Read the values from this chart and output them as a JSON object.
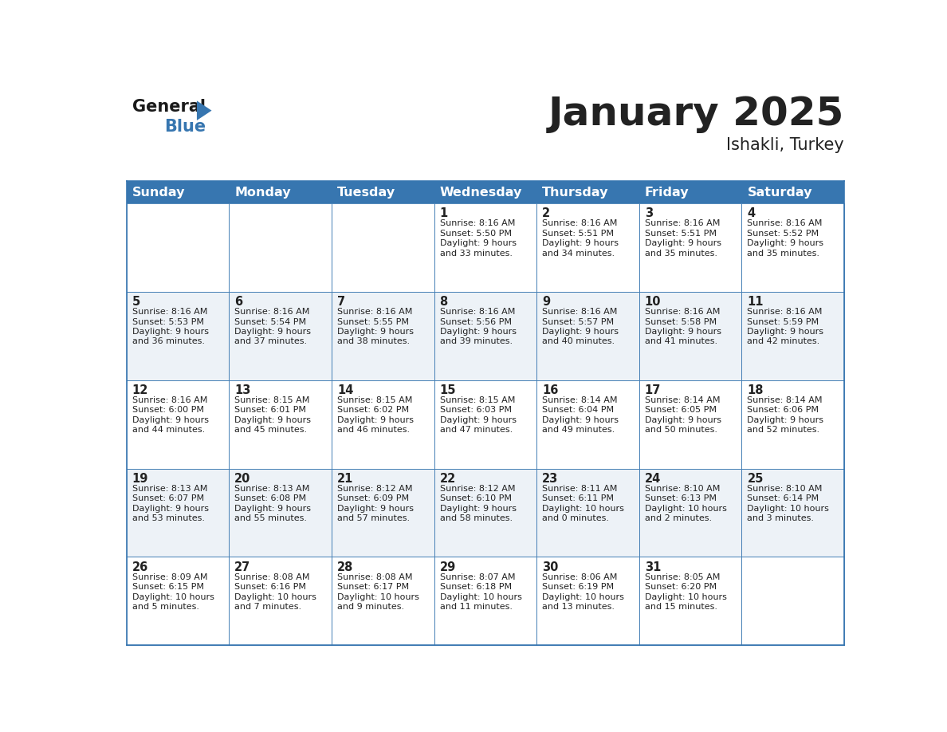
{
  "title": "January 2025",
  "subtitle": "Ishakli, Turkey",
  "header_color": "#3776b0",
  "header_text_color": "#ffffff",
  "cell_bg_white": "#ffffff",
  "cell_bg_gray": "#edf2f7",
  "border_color": "#3776b0",
  "day_names": [
    "Sunday",
    "Monday",
    "Tuesday",
    "Wednesday",
    "Thursday",
    "Friday",
    "Saturday"
  ],
  "days": [
    {
      "day": 1,
      "col": 3,
      "row": 0,
      "sunrise": "8:16 AM",
      "sunset": "5:50 PM",
      "daylight_h": "9 hours",
      "daylight_m": "33 minutes."
    },
    {
      "day": 2,
      "col": 4,
      "row": 0,
      "sunrise": "8:16 AM",
      "sunset": "5:51 PM",
      "daylight_h": "9 hours",
      "daylight_m": "34 minutes."
    },
    {
      "day": 3,
      "col": 5,
      "row": 0,
      "sunrise": "8:16 AM",
      "sunset": "5:51 PM",
      "daylight_h": "9 hours",
      "daylight_m": "35 minutes."
    },
    {
      "day": 4,
      "col": 6,
      "row": 0,
      "sunrise": "8:16 AM",
      "sunset": "5:52 PM",
      "daylight_h": "9 hours",
      "daylight_m": "35 minutes."
    },
    {
      "day": 5,
      "col": 0,
      "row": 1,
      "sunrise": "8:16 AM",
      "sunset": "5:53 PM",
      "daylight_h": "9 hours",
      "daylight_m": "36 minutes."
    },
    {
      "day": 6,
      "col": 1,
      "row": 1,
      "sunrise": "8:16 AM",
      "sunset": "5:54 PM",
      "daylight_h": "9 hours",
      "daylight_m": "37 minutes."
    },
    {
      "day": 7,
      "col": 2,
      "row": 1,
      "sunrise": "8:16 AM",
      "sunset": "5:55 PM",
      "daylight_h": "9 hours",
      "daylight_m": "38 minutes."
    },
    {
      "day": 8,
      "col": 3,
      "row": 1,
      "sunrise": "8:16 AM",
      "sunset": "5:56 PM",
      "daylight_h": "9 hours",
      "daylight_m": "39 minutes."
    },
    {
      "day": 9,
      "col": 4,
      "row": 1,
      "sunrise": "8:16 AM",
      "sunset": "5:57 PM",
      "daylight_h": "9 hours",
      "daylight_m": "40 minutes."
    },
    {
      "day": 10,
      "col": 5,
      "row": 1,
      "sunrise": "8:16 AM",
      "sunset": "5:58 PM",
      "daylight_h": "9 hours",
      "daylight_m": "41 minutes."
    },
    {
      "day": 11,
      "col": 6,
      "row": 1,
      "sunrise": "8:16 AM",
      "sunset": "5:59 PM",
      "daylight_h": "9 hours",
      "daylight_m": "42 minutes."
    },
    {
      "day": 12,
      "col": 0,
      "row": 2,
      "sunrise": "8:16 AM",
      "sunset": "6:00 PM",
      "daylight_h": "9 hours",
      "daylight_m": "44 minutes."
    },
    {
      "day": 13,
      "col": 1,
      "row": 2,
      "sunrise": "8:15 AM",
      "sunset": "6:01 PM",
      "daylight_h": "9 hours",
      "daylight_m": "45 minutes."
    },
    {
      "day": 14,
      "col": 2,
      "row": 2,
      "sunrise": "8:15 AM",
      "sunset": "6:02 PM",
      "daylight_h": "9 hours",
      "daylight_m": "46 minutes."
    },
    {
      "day": 15,
      "col": 3,
      "row": 2,
      "sunrise": "8:15 AM",
      "sunset": "6:03 PM",
      "daylight_h": "9 hours",
      "daylight_m": "47 minutes."
    },
    {
      "day": 16,
      "col": 4,
      "row": 2,
      "sunrise": "8:14 AM",
      "sunset": "6:04 PM",
      "daylight_h": "9 hours",
      "daylight_m": "49 minutes."
    },
    {
      "day": 17,
      "col": 5,
      "row": 2,
      "sunrise": "8:14 AM",
      "sunset": "6:05 PM",
      "daylight_h": "9 hours",
      "daylight_m": "50 minutes."
    },
    {
      "day": 18,
      "col": 6,
      "row": 2,
      "sunrise": "8:14 AM",
      "sunset": "6:06 PM",
      "daylight_h": "9 hours",
      "daylight_m": "52 minutes."
    },
    {
      "day": 19,
      "col": 0,
      "row": 3,
      "sunrise": "8:13 AM",
      "sunset": "6:07 PM",
      "daylight_h": "9 hours",
      "daylight_m": "53 minutes."
    },
    {
      "day": 20,
      "col": 1,
      "row": 3,
      "sunrise": "8:13 AM",
      "sunset": "6:08 PM",
      "daylight_h": "9 hours",
      "daylight_m": "55 minutes."
    },
    {
      "day": 21,
      "col": 2,
      "row": 3,
      "sunrise": "8:12 AM",
      "sunset": "6:09 PM",
      "daylight_h": "9 hours",
      "daylight_m": "57 minutes."
    },
    {
      "day": 22,
      "col": 3,
      "row": 3,
      "sunrise": "8:12 AM",
      "sunset": "6:10 PM",
      "daylight_h": "9 hours",
      "daylight_m": "58 minutes."
    },
    {
      "day": 23,
      "col": 4,
      "row": 3,
      "sunrise": "8:11 AM",
      "sunset": "6:11 PM",
      "daylight_h": "10 hours",
      "daylight_m": "0 minutes."
    },
    {
      "day": 24,
      "col": 5,
      "row": 3,
      "sunrise": "8:10 AM",
      "sunset": "6:13 PM",
      "daylight_h": "10 hours",
      "daylight_m": "2 minutes."
    },
    {
      "day": 25,
      "col": 6,
      "row": 3,
      "sunrise": "8:10 AM",
      "sunset": "6:14 PM",
      "daylight_h": "10 hours",
      "daylight_m": "3 minutes."
    },
    {
      "day": 26,
      "col": 0,
      "row": 4,
      "sunrise": "8:09 AM",
      "sunset": "6:15 PM",
      "daylight_h": "10 hours",
      "daylight_m": "5 minutes."
    },
    {
      "day": 27,
      "col": 1,
      "row": 4,
      "sunrise": "8:08 AM",
      "sunset": "6:16 PM",
      "daylight_h": "10 hours",
      "daylight_m": "7 minutes."
    },
    {
      "day": 28,
      "col": 2,
      "row": 4,
      "sunrise": "8:08 AM",
      "sunset": "6:17 PM",
      "daylight_h": "10 hours",
      "daylight_m": "9 minutes."
    },
    {
      "day": 29,
      "col": 3,
      "row": 4,
      "sunrise": "8:07 AM",
      "sunset": "6:18 PM",
      "daylight_h": "10 hours",
      "daylight_m": "11 minutes."
    },
    {
      "day": 30,
      "col": 4,
      "row": 4,
      "sunrise": "8:06 AM",
      "sunset": "6:19 PM",
      "daylight_h": "10 hours",
      "daylight_m": "13 minutes."
    },
    {
      "day": 31,
      "col": 5,
      "row": 4,
      "sunrise": "8:05 AM",
      "sunset": "6:20 PM",
      "daylight_h": "10 hours",
      "daylight_m": "15 minutes."
    }
  ],
  "num_rows": 5,
  "num_cols": 7,
  "logo_blue_color": "#3776b0",
  "text_color": "#222222",
  "day_number_color": "#222222",
  "info_font_size": 8.0,
  "day_num_font_size": 10.5,
  "header_font_size": 11.5,
  "title_font_size": 36,
  "subtitle_font_size": 15
}
